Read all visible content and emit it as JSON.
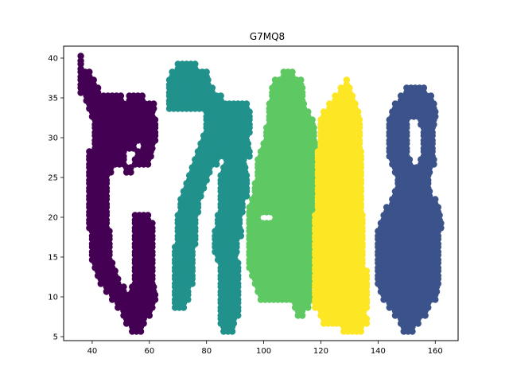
{
  "chart_data": {
    "type": "scatter",
    "title": "G7MQ8",
    "xlabel": "",
    "ylabel": "",
    "xlim": [
      30,
      168
    ],
    "ylim": [
      4.5,
      41.5
    ],
    "xticks": [
      40,
      60,
      80,
      100,
      120,
      140,
      160
    ],
    "yticks": [
      5,
      10,
      15,
      20,
      25,
      30,
      35,
      40
    ],
    "grid": false,
    "legend": "none",
    "marker_spacing": {
      "dx": 1.5,
      "dy": 0.6
    },
    "series": [
      {
        "color": "#440154",
        "rows": [
          [
            40,
            36,
            37
          ],
          [
            39,
            36,
            37
          ],
          [
            38,
            36,
            39
          ],
          [
            37,
            36,
            41
          ],
          [
            36,
            36,
            43
          ],
          [
            35,
            38,
            50
          ],
          [
            35,
            53,
            58
          ],
          [
            34,
            39,
            62
          ],
          [
            33,
            40,
            62
          ],
          [
            32,
            41,
            62
          ],
          [
            31,
            41,
            62
          ],
          [
            30,
            41,
            62
          ],
          [
            29,
            41,
            55
          ],
          [
            29,
            58,
            62
          ],
          [
            28,
            39,
            52
          ],
          [
            28,
            56,
            61
          ],
          [
            27,
            39,
            51
          ],
          [
            27,
            55,
            60
          ],
          [
            26,
            39,
            47
          ],
          [
            26,
            52,
            54
          ],
          [
            25,
            39,
            45
          ],
          [
            24,
            39,
            45
          ],
          [
            23,
            39,
            45
          ],
          [
            22,
            39,
            45
          ],
          [
            21,
            39,
            45
          ],
          [
            20,
            39,
            46
          ],
          [
            20,
            55,
            60
          ],
          [
            19,
            39,
            46
          ],
          [
            19,
            55,
            61
          ],
          [
            18,
            40,
            46
          ],
          [
            18,
            55,
            61
          ],
          [
            17,
            40,
            46
          ],
          [
            17,
            55,
            61
          ],
          [
            16,
            40,
            46
          ],
          [
            16,
            55,
            61
          ],
          [
            15,
            40,
            47
          ],
          [
            15,
            55,
            62
          ],
          [
            14,
            41,
            47
          ],
          [
            14,
            55,
            62
          ],
          [
            13,
            42,
            48
          ],
          [
            13,
            55,
            62
          ],
          [
            12,
            43,
            49
          ],
          [
            12,
            55,
            62
          ],
          [
            11,
            45,
            51
          ],
          [
            11,
            54,
            62
          ],
          [
            10,
            47,
            62
          ],
          [
            9,
            49,
            61
          ],
          [
            8,
            51,
            60
          ],
          [
            7,
            52,
            58
          ],
          [
            6,
            54,
            57
          ]
        ]
      },
      {
        "color": "#21918c",
        "rows": [
          [
            39,
            70,
            77
          ],
          [
            38,
            68,
            80
          ],
          [
            37,
            67,
            81
          ],
          [
            36,
            67,
            82
          ],
          [
            35,
            67,
            85
          ],
          [
            34,
            67,
            95
          ],
          [
            33,
            80,
            95
          ],
          [
            32,
            80,
            95
          ],
          [
            31,
            80,
            95
          ],
          [
            30,
            79,
            95
          ],
          [
            29,
            78,
            95
          ],
          [
            28,
            77,
            95
          ],
          [
            27,
            76,
            84
          ],
          [
            27,
            87,
            94
          ],
          [
            26,
            75,
            81
          ],
          [
            26,
            86,
            94
          ],
          [
            25,
            74,
            80
          ],
          [
            25,
            85,
            94
          ],
          [
            24,
            73,
            79
          ],
          [
            24,
            85,
            94
          ],
          [
            23,
            72,
            79
          ],
          [
            23,
            85,
            94
          ],
          [
            22,
            71,
            78
          ],
          [
            22,
            85,
            93
          ],
          [
            21,
            71,
            78
          ],
          [
            21,
            85,
            93
          ],
          [
            20,
            70,
            77
          ],
          [
            20,
            84,
            92
          ],
          [
            19,
            70,
            77
          ],
          [
            19,
            84,
            92
          ],
          [
            18,
            70,
            76
          ],
          [
            18,
            83,
            92
          ],
          [
            17,
            70,
            76
          ],
          [
            17,
            83,
            91
          ],
          [
            16,
            69,
            76
          ],
          [
            16,
            83,
            91
          ],
          [
            15,
            69,
            75
          ],
          [
            15,
            84,
            91
          ],
          [
            14,
            69,
            75
          ],
          [
            14,
            85,
            91
          ],
          [
            13,
            69,
            75
          ],
          [
            13,
            85,
            91
          ],
          [
            12,
            69,
            75
          ],
          [
            12,
            85,
            91
          ],
          [
            11,
            69,
            74
          ],
          [
            11,
            85,
            91
          ],
          [
            10,
            69,
            74
          ],
          [
            10,
            85,
            91
          ],
          [
            9,
            69,
            73
          ],
          [
            9,
            85,
            91
          ],
          [
            8,
            85,
            91
          ],
          [
            7,
            85,
            90
          ],
          [
            6,
            86,
            89
          ]
        ]
      },
      {
        "color": "#5ec962",
        "rows": [
          [
            38,
            107,
            111
          ],
          [
            37,
            104,
            113
          ],
          [
            36,
            103,
            114
          ],
          [
            35,
            103,
            114
          ],
          [
            34,
            102,
            114
          ],
          [
            33,
            102,
            116
          ],
          [
            32,
            102,
            118
          ],
          [
            31,
            101,
            118
          ],
          [
            30,
            101,
            118
          ],
          [
            29,
            100,
            118
          ],
          [
            28,
            99,
            118
          ],
          [
            27,
            98,
            118
          ],
          [
            26,
            98,
            118
          ],
          [
            25,
            98,
            118
          ],
          [
            24,
            97,
            118
          ],
          [
            23,
            97,
            118
          ],
          [
            22,
            96,
            118
          ],
          [
            21,
            95,
            118
          ],
          [
            20,
            95,
            99
          ],
          [
            20,
            104,
            118
          ],
          [
            19,
            95,
            118
          ],
          [
            18,
            95,
            118
          ],
          [
            17,
            95,
            118
          ],
          [
            16,
            95,
            118
          ],
          [
            15,
            95,
            118
          ],
          [
            14,
            95,
            118
          ],
          [
            13,
            96,
            118
          ],
          [
            12,
            97,
            118
          ],
          [
            11,
            98,
            117
          ],
          [
            10,
            99,
            117
          ],
          [
            9,
            111,
            116
          ],
          [
            8,
            112,
            114
          ]
        ]
      },
      {
        "color": "#fde725",
        "rows": [
          [
            37,
            129,
            130
          ],
          [
            36,
            127,
            131
          ],
          [
            35,
            125,
            132
          ],
          [
            34,
            123,
            132
          ],
          [
            33,
            121,
            133
          ],
          [
            32,
            120,
            134
          ],
          [
            31,
            120,
            134
          ],
          [
            30,
            120,
            134
          ],
          [
            29,
            120,
            134
          ],
          [
            28,
            119,
            135
          ],
          [
            27,
            119,
            135
          ],
          [
            26,
            119,
            135
          ],
          [
            25,
            119,
            135
          ],
          [
            24,
            119,
            135
          ],
          [
            23,
            119,
            135
          ],
          [
            22,
            119,
            135
          ],
          [
            21,
            119,
            135
          ],
          [
            20,
            118,
            135
          ],
          [
            19,
            118,
            135
          ],
          [
            18,
            118,
            135
          ],
          [
            17,
            118,
            135
          ],
          [
            16,
            118,
            135
          ],
          [
            15,
            118,
            135
          ],
          [
            14,
            118,
            135
          ],
          [
            13,
            118,
            136
          ],
          [
            12,
            118,
            136
          ],
          [
            11,
            118,
            136
          ],
          [
            10,
            118,
            136
          ],
          [
            9,
            118,
            136
          ],
          [
            8,
            120,
            136
          ],
          [
            7,
            121,
            136
          ],
          [
            6,
            128,
            135
          ]
        ]
      },
      {
        "color": "#3b528b",
        "rows": [
          [
            36,
            150,
            157
          ],
          [
            35,
            148,
            159
          ],
          [
            34,
            146,
            160
          ],
          [
            33,
            145,
            160
          ],
          [
            32,
            144,
            151
          ],
          [
            32,
            155,
            160
          ],
          [
            31,
            144,
            150
          ],
          [
            31,
            156,
            160
          ],
          [
            30,
            144,
            150
          ],
          [
            30,
            156,
            160
          ],
          [
            29,
            144,
            150
          ],
          [
            29,
            156,
            160
          ],
          [
            28,
            144,
            150
          ],
          [
            28,
            156,
            160
          ],
          [
            27,
            145,
            151
          ],
          [
            27,
            155,
            160
          ],
          [
            26,
            146,
            159
          ],
          [
            25,
            147,
            158
          ],
          [
            24,
            147,
            158
          ],
          [
            23,
            146,
            159
          ],
          [
            22,
            145,
            160
          ],
          [
            21,
            143,
            161
          ],
          [
            20,
            142,
            162
          ],
          [
            19,
            141,
            162
          ],
          [
            18,
            140,
            162
          ],
          [
            17,
            140,
            162
          ],
          [
            16,
            140,
            162
          ],
          [
            15,
            140,
            162
          ],
          [
            14,
            140,
            162
          ],
          [
            13,
            140,
            162
          ],
          [
            12,
            140,
            162
          ],
          [
            11,
            141,
            161
          ],
          [
            10,
            142,
            160
          ],
          [
            9,
            144,
            158
          ],
          [
            8,
            146,
            157
          ],
          [
            7,
            148,
            155
          ],
          [
            6,
            149,
            153
          ]
        ]
      }
    ]
  }
}
